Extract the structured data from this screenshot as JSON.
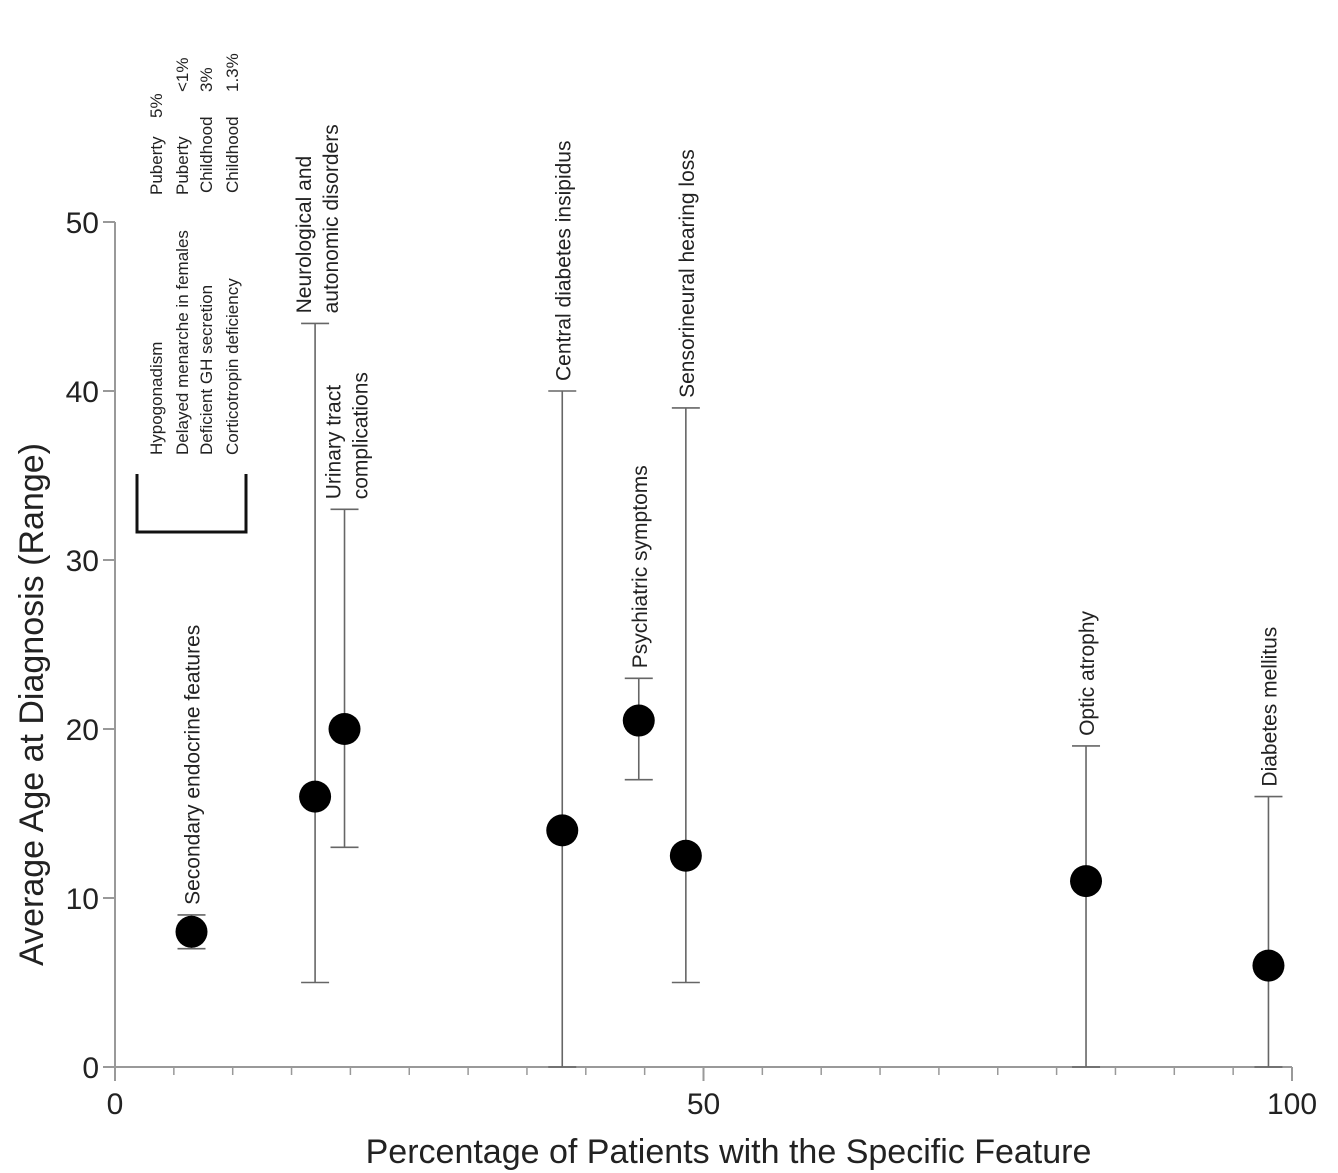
{
  "chart_data": {
    "type": "scatter",
    "xlabel": "Percentage of Patients with the Specific Feature",
    "ylabel": "Average Age at Diagnosis (Range)",
    "xlim": [
      0,
      100
    ],
    "ylim": [
      0,
      50
    ],
    "xticks": [
      0,
      50,
      100
    ],
    "yticks": [
      0,
      10,
      20,
      30,
      40,
      50
    ],
    "x_minor_step": 5,
    "grid": false,
    "point_color": "#000000",
    "points": [
      {
        "label": "Secondary endocrine features",
        "x": 6.5,
        "y": 8,
        "ymin": 7,
        "ymax": 9
      },
      {
        "label": "Neurological and",
        "label2": "autonomic disorders",
        "x": 17,
        "y": 16,
        "ymin": 5,
        "ymax": 44
      },
      {
        "label": "Urinary tract",
        "label2": "complications",
        "x": 19.5,
        "y": 20,
        "ymin": 13,
        "ymax": 33
      },
      {
        "label": "Central diabetes insipidus",
        "x": 38,
        "y": 14,
        "ymin": 0,
        "ymax": 40
      },
      {
        "label": "Psychiatric symptoms",
        "x": 44.5,
        "y": 20.5,
        "ymin": 17,
        "ymax": 23
      },
      {
        "label": "Sensorineural hearing loss",
        "x": 48.5,
        "y": 12.5,
        "ymin": 5,
        "ymax": 39
      },
      {
        "label": "Optic atrophy",
        "x": 82.5,
        "y": 11,
        "ymin": 0,
        "ymax": 19
      },
      {
        "label": "Diabetes mellitus",
        "x": 98,
        "y": 6,
        "ymin": 0,
        "ymax": 16
      }
    ],
    "endocrine_details": [
      {
        "feature": "Hypogonadism",
        "stage": "Puberty",
        "pct": "5%"
      },
      {
        "feature": "Delayed menarche in females",
        "stage": "Puberty",
        "pct": "<1%"
      },
      {
        "feature": "Deficient GH secretion",
        "stage": "Childhood",
        "pct": "3%"
      },
      {
        "feature": "Corticotropin deficiency",
        "stage": "Childhood",
        "pct": "1.3%"
      }
    ]
  }
}
